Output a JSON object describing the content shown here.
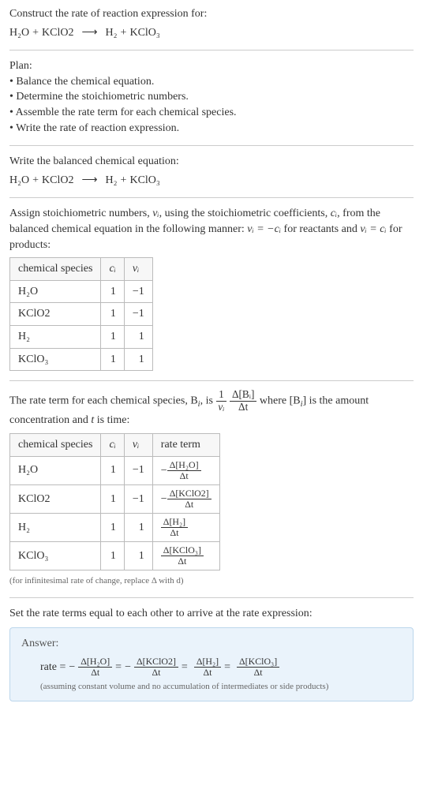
{
  "title": "Construct the rate of reaction expression for:",
  "equation": {
    "lhs": [
      "H₂O",
      "+",
      "KClO2"
    ],
    "arrow": "⟶",
    "rhs": [
      "H₂",
      "+",
      "KClO₃"
    ]
  },
  "plan_label": "Plan:",
  "plan": [
    "Balance the chemical equation.",
    "Determine the stoichiometric numbers.",
    "Assemble the rate term for each chemical species.",
    "Write the rate of reaction expression."
  ],
  "balanced_label": "Write the balanced chemical equation:",
  "assign_text_1": "Assign stoichiometric numbers, ",
  "assign_nu": "νᵢ",
  "assign_text_2": ", using the stoichiometric coefficients, ",
  "assign_ci": "cᵢ",
  "assign_text_3": ", from the balanced chemical equation in the following manner: ",
  "assign_eq1": "νᵢ = −cᵢ",
  "assign_text_4": " for reactants and ",
  "assign_eq2": "νᵢ = cᵢ",
  "assign_text_5": " for products:",
  "table1": {
    "headers": [
      "chemical species",
      "cᵢ",
      "νᵢ"
    ],
    "rows": [
      [
        "H₂O",
        "1",
        "−1"
      ],
      [
        "KClO2",
        "1",
        "−1"
      ],
      [
        "H₂",
        "1",
        "1"
      ],
      [
        "KClO₃",
        "1",
        "1"
      ]
    ]
  },
  "rate_term_text_1": "The rate term for each chemical species, B",
  "rate_term_text_2": ", is ",
  "rate_term_text_3": " where [B",
  "rate_term_text_4": "] is the amount concentration and ",
  "rate_term_t": "t",
  "rate_term_text_5": " is time:",
  "frac1_num": "1",
  "frac1_den": "νᵢ",
  "frac2_num": "Δ[Bᵢ]",
  "frac2_den": "Δt",
  "table2": {
    "headers": [
      "chemical species",
      "cᵢ",
      "νᵢ",
      "rate term"
    ],
    "rows": [
      {
        "sp": "H₂O",
        "c": "1",
        "v": "−1",
        "sign": "−",
        "num": "Δ[H₂O]",
        "den": "Δt"
      },
      {
        "sp": "KClO2",
        "c": "1",
        "v": "−1",
        "sign": "−",
        "num": "Δ[KClO2]",
        "den": "Δt"
      },
      {
        "sp": "H₂",
        "c": "1",
        "v": "1",
        "sign": "",
        "num": "Δ[H₂]",
        "den": "Δt"
      },
      {
        "sp": "KClO₃",
        "c": "1",
        "v": "1",
        "sign": "",
        "num": "Δ[KClO₃]",
        "den": "Δt"
      }
    ]
  },
  "infinitesimal_note": "(for infinitesimal rate of change, replace Δ with d)",
  "set_equal": "Set the rate terms equal to each other to arrive at the rate expression:",
  "answer_label": "Answer:",
  "answer": {
    "prefix": "rate = ",
    "terms": [
      {
        "sign": "−",
        "num": "Δ[H₂O]",
        "den": "Δt"
      },
      {
        "sign": "−",
        "num": "Δ[KClO2]",
        "den": "Δt"
      },
      {
        "sign": "",
        "num": "Δ[H₂]",
        "den": "Δt"
      },
      {
        "sign": "",
        "num": "Δ[KClO₃]",
        "den": "Δt"
      }
    ],
    "eq": " = "
  },
  "assumption": "(assuming constant volume and no accumulation of intermediates or side products)",
  "colors": {
    "answer_bg": "#eaf3fb",
    "answer_border": "#bcd6ec",
    "rule": "#ccc",
    "cell_border": "#bbb"
  }
}
